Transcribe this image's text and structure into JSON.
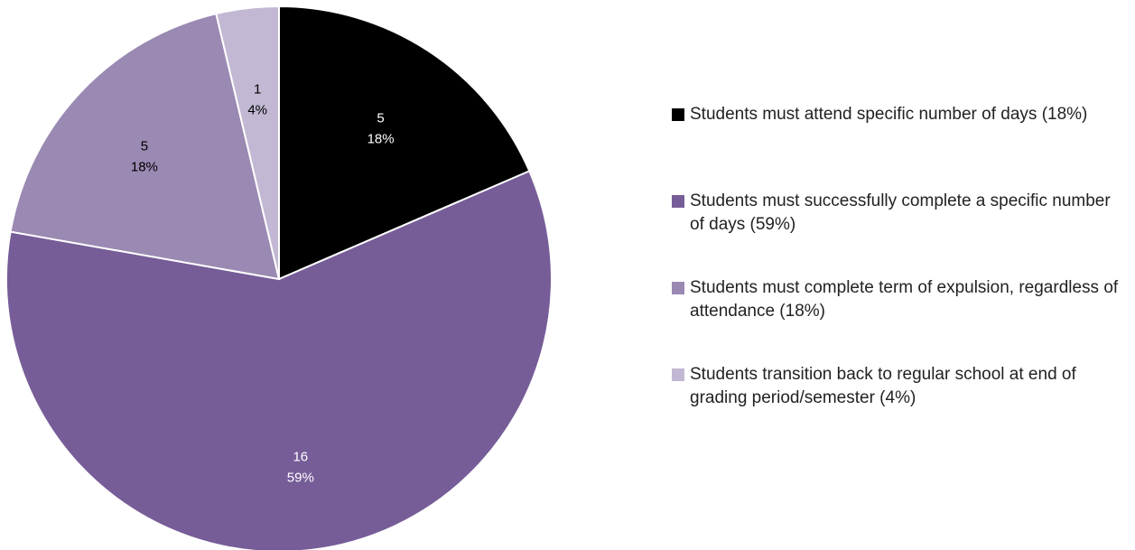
{
  "chart_data": {
    "type": "pie",
    "slices": [
      {
        "label": "Students must attend specific number of days (18%)",
        "value": 5,
        "percent": "18%",
        "color": "#000000",
        "label_color": "#ffffff"
      },
      {
        "label": "Students must successfully complete a specific number of days (59%)",
        "value": 16,
        "percent": "59%",
        "color": "#765d98",
        "label_color": "#ffffff"
      },
      {
        "label": "Students must complete term of expulsion, regardless of attendance (18%)",
        "value": 5,
        "percent": "18%",
        "color": "#9a89b2",
        "label_color": "#000000"
      },
      {
        "label": "Students transition back to regular school at end of grading period/semester (4%)",
        "value": 1,
        "percent": "4%",
        "color": "#c2b8d3",
        "label_color": "#000000"
      }
    ],
    "start_angle_deg": 0,
    "direction": "clockwise",
    "legend_position": "right"
  }
}
